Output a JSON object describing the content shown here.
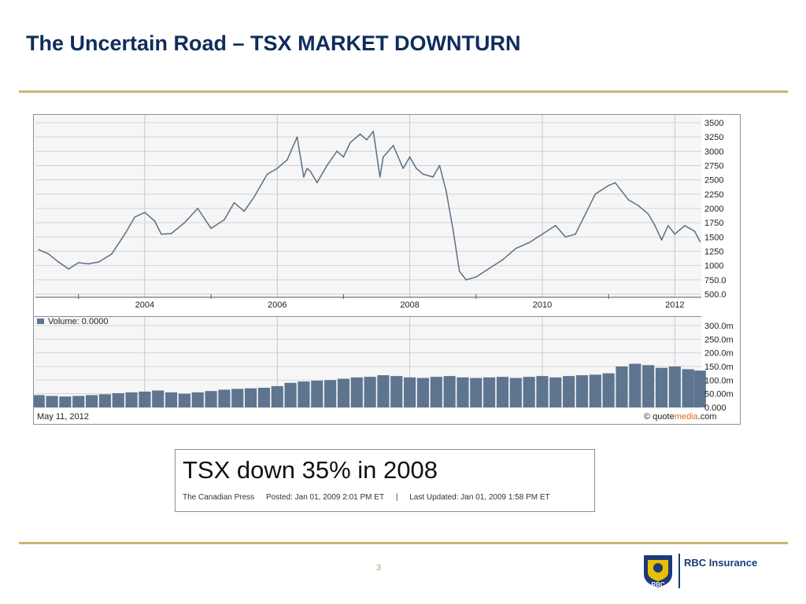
{
  "slide": {
    "title": "The Uncertain Road – TSX MARKET DOWNTURN",
    "page_number": "3"
  },
  "news": {
    "headline": "TSX down 35% in 2008",
    "source": "The Canadian Press",
    "posted": "Posted: Jan 01, 2009 2:01 PM ET",
    "separator": "|",
    "updated": "Last Updated: Jan 01, 2009 1:58 PM ET"
  },
  "logo": {
    "mark_text": "RBC",
    "company": "RBC Insurance"
  },
  "colors": {
    "title": "#0f2c5c",
    "rule": "#c8b574",
    "price_line": "#5a6f86",
    "volume_fill": "#5e7590",
    "logo_blue": "#1b3a7a",
    "logo_gold": "#e8c000"
  },
  "chart_data": [
    {
      "type": "line",
      "series": [
        {
          "x": [
            2002.4,
            2002.55,
            2002.7,
            2002.85,
            2003.0,
            2003.15,
            2003.3,
            2003.5,
            2003.7,
            2003.85,
            2004.0,
            2004.15,
            2004.25,
            2004.4,
            2004.6,
            2004.8,
            2005.0,
            2005.2,
            2005.35,
            2005.5,
            2005.65,
            2005.85,
            2006.0,
            2006.15,
            2006.3,
            2006.4,
            2006.45,
            2006.5,
            2006.6,
            2006.75,
            2006.9,
            2007.0,
            2007.1,
            2007.25,
            2007.35,
            2007.45,
            2007.55,
            2007.6,
            2007.75,
            2007.9,
            2008.0,
            2008.1,
            2008.2,
            2008.35,
            2008.45,
            2008.55,
            2008.65,
            2008.75,
            2008.85,
            2009.0,
            2009.2,
            2009.4,
            2009.6,
            2009.8,
            2010.0,
            2010.2,
            2010.35,
            2010.5,
            2010.65,
            2010.8,
            2011.0,
            2011.1,
            2011.2,
            2011.3,
            2011.45,
            2011.6,
            2011.7,
            2011.8,
            2011.9,
            2012.0,
            2012.15,
            2012.3,
            2012.38
          ],
          "values": [
            1280,
            1200,
            1060,
            940,
            1050,
            1030,
            1060,
            1200,
            1550,
            1850,
            1930,
            1780,
            1550,
            1560,
            1750,
            2000,
            1650,
            1800,
            2100,
            1950,
            2200,
            2600,
            2700,
            2850,
            3250,
            2550,
            2700,
            2650,
            2450,
            2750,
            3000,
            2900,
            3150,
            3300,
            3200,
            3350,
            2550,
            2900,
            3100,
            2700,
            2900,
            2700,
            2600,
            2550,
            2750,
            2300,
            1650,
            900,
            750,
            800,
            950,
            1100,
            1300,
            1400,
            1550,
            1700,
            1500,
            1550,
            1900,
            2250,
            2400,
            2450,
            2300,
            2150,
            2050,
            1900,
            1700,
            1450,
            1700,
            1550,
            1700,
            1600,
            1420
          ]
        }
      ],
      "x_ticks": [
        "2004",
        "2006",
        "2008",
        "2010",
        "2012"
      ],
      "y_ticks": [
        "3500",
        "3250",
        "3000",
        "2750",
        "2500",
        "2250",
        "2000",
        "1750",
        "1500",
        "1250",
        "1000",
        "750.0",
        "500.0"
      ],
      "ylim": [
        500,
        3500
      ],
      "grid": true
    },
    {
      "type": "bar",
      "legend": "Volume: 0.0000",
      "series": [
        {
          "x": [
            2002.4,
            2002.6,
            2002.8,
            2003.0,
            2003.2,
            2003.4,
            2003.6,
            2003.8,
            2004.0,
            2004.2,
            2004.4,
            2004.6,
            2004.8,
            2005.0,
            2005.2,
            2005.4,
            2005.6,
            2005.8,
            2006.0,
            2006.2,
            2006.4,
            2006.6,
            2006.8,
            2007.0,
            2007.2,
            2007.4,
            2007.6,
            2007.8,
            2008.0,
            2008.2,
            2008.4,
            2008.6,
            2008.8,
            2009.0,
            2009.2,
            2009.4,
            2009.6,
            2009.8,
            2010.0,
            2010.2,
            2010.4,
            2010.6,
            2010.8,
            2011.0,
            2011.2,
            2011.4,
            2011.6,
            2011.8,
            2012.0,
            2012.2,
            2012.38
          ],
          "values": [
            45,
            42,
            40,
            42,
            45,
            48,
            52,
            55,
            58,
            62,
            55,
            50,
            55,
            60,
            65,
            68,
            70,
            72,
            78,
            90,
            95,
            98,
            100,
            105,
            110,
            112,
            118,
            115,
            110,
            108,
            112,
            115,
            110,
            108,
            110,
            112,
            108,
            112,
            115,
            110,
            115,
            118,
            120,
            125,
            150,
            160,
            155,
            145,
            150,
            140,
            135
          ]
        }
      ],
      "y_ticks": [
        "300.0m",
        "250.0m",
        "200.0m",
        "150.0m",
        "100.0m",
        "50.00m",
        "0.000"
      ],
      "ylim": [
        0,
        300
      ],
      "grid": true
    }
  ],
  "footer": {
    "date": "May 11, 2012",
    "credit_prefix": "© quote",
    "credit_highlight": "media",
    "credit_suffix": ".com"
  }
}
